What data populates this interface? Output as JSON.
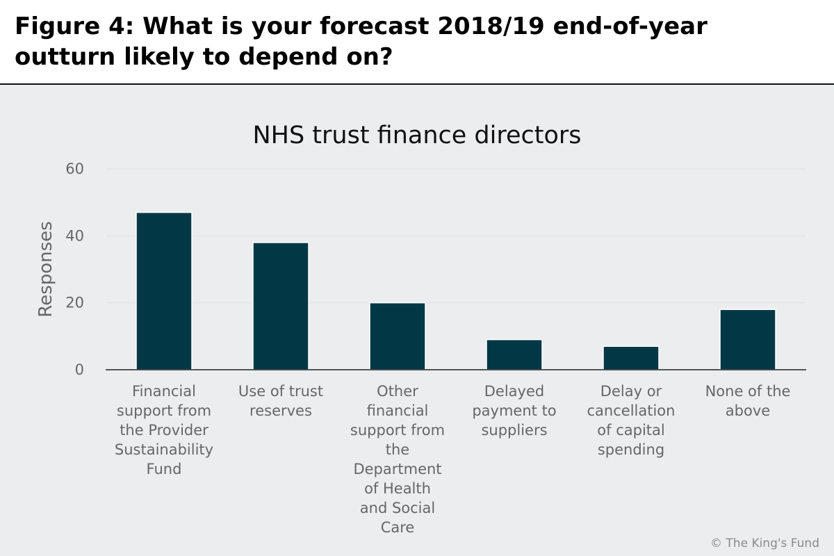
{
  "header": {
    "title": "Figure 4: What is your forecast 2018/19 end-of-year outturn likely to depend on?"
  },
  "credit": "© The King's Fund",
  "colors": {
    "bar": "#023846",
    "grid": "#e3e4e6",
    "axis_text": "#666666",
    "title_text": "#111111"
  },
  "chart_data": {
    "type": "bar",
    "title": "NHS trust finance directors",
    "xlabel": "",
    "ylabel": "Responses",
    "ylim": [
      0,
      60
    ],
    "yticks": [
      0,
      20,
      40,
      60
    ],
    "grid": true,
    "categories": [
      "Financial support from the Provider Sustainability Fund",
      "Use of trust reserves",
      "Other financial support from the Department of Health and Social Care",
      "Delayed payment to suppliers",
      "Delay or cancellation of capital spending",
      "None of the above"
    ],
    "category_lines": [
      [
        "Financial",
        "support from",
        "the Provider",
        "Sustainability",
        "Fund"
      ],
      [
        "Use of trust",
        "reserves"
      ],
      [
        "Other",
        "financial",
        "support from",
        "the",
        "Department",
        "of Health",
        "and Social",
        "Care"
      ],
      [
        "Delayed",
        "payment to",
        "suppliers"
      ],
      [
        "Delay or",
        "cancellation",
        "of capital",
        "spending"
      ],
      [
        "None of the",
        "above"
      ]
    ],
    "values": [
      47,
      38,
      20,
      9,
      7,
      18
    ]
  }
}
